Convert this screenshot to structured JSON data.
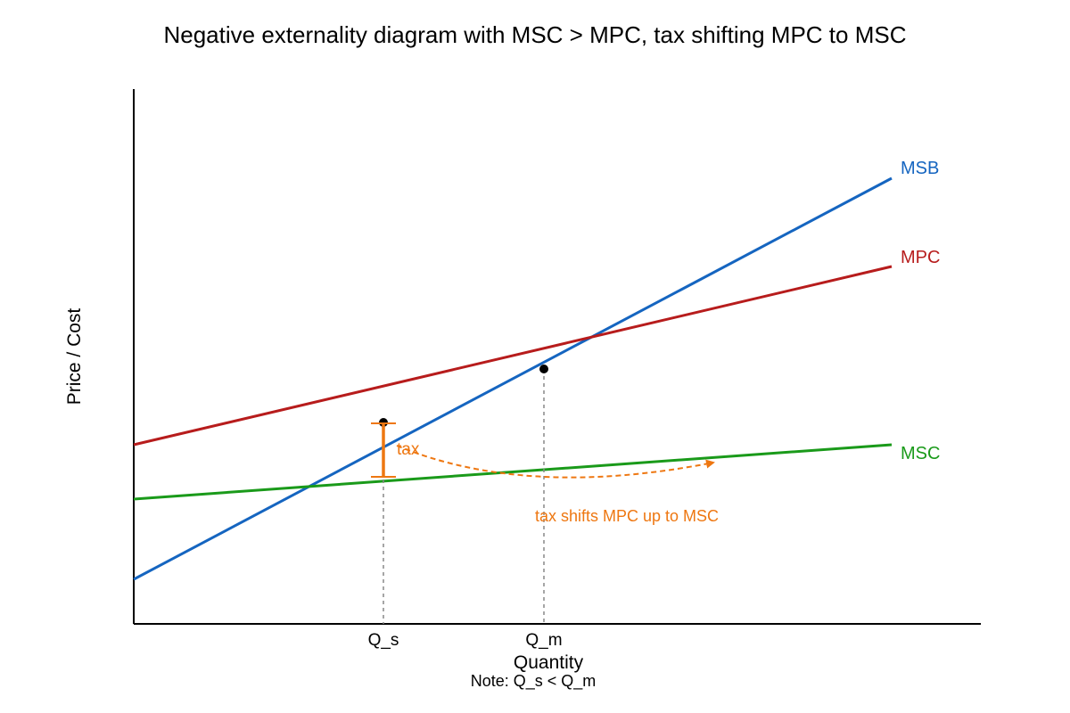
{
  "title": "Negative externality diagram with MSC > MPC, tax shifting MPC to MSC",
  "axes": {
    "xlabel": "Quantity",
    "ylabel": "Price / Cost",
    "note": "Note: Q_s < Q_m"
  },
  "ticks": {
    "q_s": "Q_s",
    "q_m": "Q_m"
  },
  "curves": {
    "msb": {
      "label": "MSB",
      "color": "#1565c0"
    },
    "mpc": {
      "label": "MPC",
      "color": "#b71c1c"
    },
    "msc": {
      "label": "MSC",
      "color": "#1a9a1a"
    }
  },
  "annotations": {
    "tax_label": "tax",
    "shift_label": "tax shifts MPC up to MSC",
    "tax_color": "#ee7711"
  }
}
